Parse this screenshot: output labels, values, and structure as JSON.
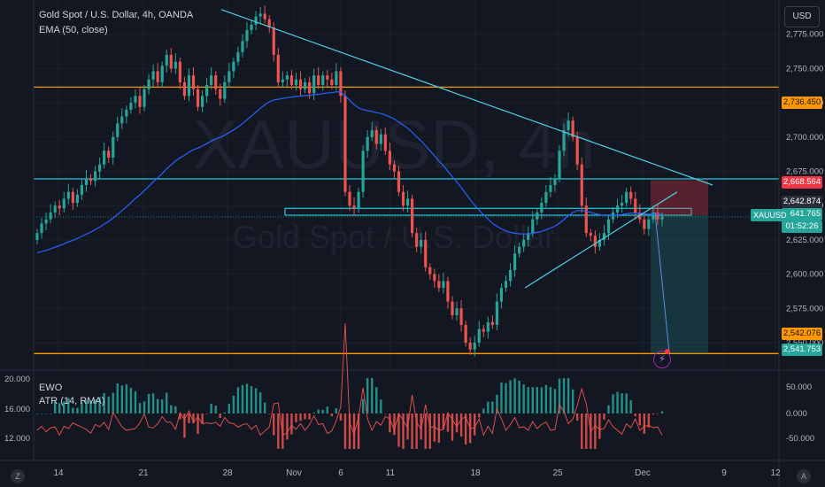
{
  "header": {
    "title": "Gold Spot / U.S. Dollar, 4h, OANDA",
    "indicator": "EMA (50, close)"
  },
  "watermark": {
    "symbol": "XAUUSD, 4h",
    "description": "Gold Spot / U.S. Dollar"
  },
  "currency_button": "USD",
  "price_axis": {
    "ticks": [
      "2,775.000",
      "2,750.000",
      "2,725.000",
      "2,700.000",
      "2,675.000",
      "2,650.000",
      "2,625.000",
      "2,600.000",
      "2,575.000",
      "2,550.000"
    ],
    "range": [
      2530,
      2800
    ]
  },
  "price_labels": [
    {
      "text": "2,736.450",
      "color": "#ff9800",
      "value": 2736.45
    },
    {
      "text": "2,668.564",
      "color": "#f23645",
      "value": 2668.564
    },
    {
      "text": "2,642.874",
      "color": "#2a2e39",
      "value": 2642.874
    },
    {
      "text": "2,641.765",
      "color": "#26a69a",
      "value": 2641.765
    },
    {
      "text": "01:52:26",
      "color": "#26a69a",
      "value": 2638.5
    },
    {
      "text": "2,542.076",
      "color": "#ff9800",
      "value": 2542.076
    },
    {
      "text": "2,541.753",
      "color": "#26a69a",
      "value": 2541.753
    }
  ],
  "ticker_tag": "XAUUSD",
  "time_axis": {
    "labels": [
      "14",
      "21",
      "28",
      "Nov",
      "6",
      "11",
      "18",
      "25",
      "Dec",
      "9",
      "12"
    ]
  },
  "indicator_pane": {
    "ewo_label": "EWO",
    "atr_label": "ATR (14, RMA)",
    "left_ticks": [
      "20.000",
      "16.000",
      "12.000"
    ],
    "right_ticks": [
      "50.000",
      "0.000",
      "-50.000"
    ]
  },
  "corner_left": "Z",
  "corner_right": "A",
  "colors": {
    "background": "#131722",
    "up": "#26a69a",
    "down": "#ef5350",
    "ema": "#2962ff",
    "trendline": "#4dd0e1",
    "support": "#ff9800",
    "resistance": "#26c6da"
  },
  "chart_data": {
    "type": "candlestick",
    "symbol": "XAUUSD",
    "timeframe": "4h",
    "ema_period": 50,
    "horizontal_levels": [
      2736.45,
      2669.5,
      2542.076
    ],
    "zone": [
      2643,
      2648
    ],
    "trade_box": {
      "entry": 2643,
      "stop": 2668.564,
      "target": 2542.076
    },
    "closes": [
      2630,
      2637,
      2640,
      2645,
      2650,
      2648,
      2655,
      2660,
      2652,
      2658,
      2665,
      2670,
      2668,
      2675,
      2680,
      2690,
      2685,
      2700,
      2710,
      2715,
      2720,
      2725,
      2730,
      2722,
      2735,
      2742,
      2748,
      2740,
      2752,
      2760,
      2750,
      2755,
      2740,
      2730,
      2745,
      2735,
      2722,
      2730,
      2738,
      2745,
      2735,
      2728,
      2740,
      2748,
      2755,
      2762,
      2770,
      2778,
      2782,
      2788,
      2790,
      2786,
      2780,
      2760,
      2740,
      2742,
      2745,
      2738,
      2742,
      2735,
      2740,
      2732,
      2745,
      2738,
      2745,
      2742,
      2738,
      2748,
      2730,
      2660,
      2650,
      2648,
      2660,
      2690,
      2700,
      2705,
      2695,
      2702,
      2690,
      2680,
      2675,
      2660,
      2650,
      2655,
      2630,
      2620,
      2625,
      2605,
      2600,
      2595,
      2590,
      2595,
      2580,
      2570,
      2575,
      2563,
      2550,
      2545,
      2550,
      2560,
      2558,
      2565,
      2563,
      2580,
      2590,
      2595,
      2603,
      2615,
      2620,
      2625,
      2630,
      2640,
      2645,
      2652,
      2660,
      2665,
      2670,
      2690,
      2705,
      2712,
      2700,
      2680,
      2650,
      2630,
      2628,
      2620,
      2625,
      2630,
      2640,
      2645,
      2650,
      2652,
      2660,
      2655,
      2645,
      2640,
      2633,
      2640,
      2645,
      2640,
      2642
    ]
  }
}
